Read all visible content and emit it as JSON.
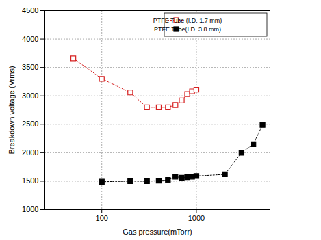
{
  "chart_data": {
    "type": "line",
    "x_label": "Gas pressure(mTorr)",
    "y_label": "Breakdown voltage (Vrms)",
    "x": [
      50,
      100,
      200,
      300,
      400,
      500,
      600,
      700,
      800,
      900,
      1000,
      2000,
      3000,
      4000,
      5000
    ],
    "series": [
      {
        "name": "PTFE Tube (I.D. 1.7 mm)",
        "color": "#d62020",
        "marker": "open square",
        "line_style": "dotted",
        "values": [
          3660,
          3300,
          3060,
          2800,
          2800,
          2800,
          2840,
          2920,
          3030,
          3080,
          3110,
          null,
          null,
          null,
          null
        ]
      },
      {
        "name": "PTFE Tube(I.D. 3.8 mm)",
        "color": "#000000",
        "marker": "square",
        "line_style": "dotted",
        "values": [
          null,
          1490,
          1500,
          1500,
          1510,
          1520,
          1580,
          1560,
          1570,
          1580,
          1590,
          1620,
          2000,
          2150,
          2490
        ]
      }
    ],
    "log": "x",
    "xlim": [
      25,
      6000
    ],
    "xticks": [
      100,
      1000
    ],
    "ylim": [
      1000,
      4500
    ],
    "yticks": [
      1000,
      1500,
      2000,
      2500,
      3000,
      3500,
      4000,
      4500
    ],
    "grid": true,
    "legend": "top-right"
  }
}
